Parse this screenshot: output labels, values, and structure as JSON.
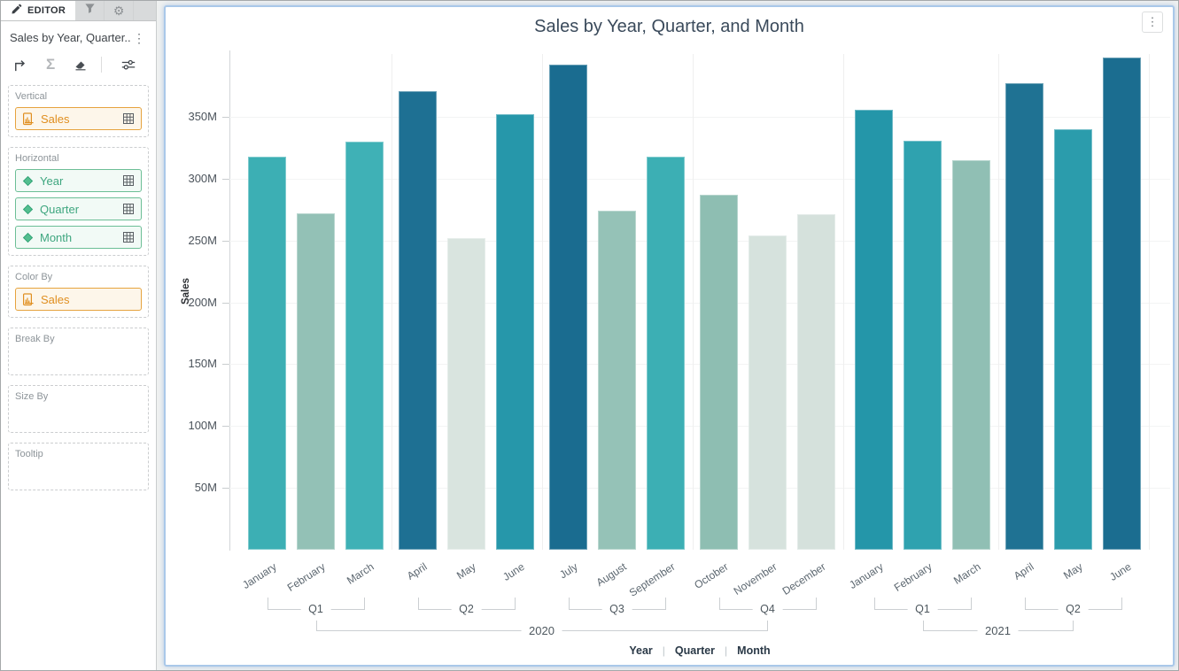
{
  "app": {
    "tabs": [
      {
        "label": "EDITOR",
        "icon": "pencil-icon",
        "active": true
      },
      {
        "label": "",
        "icon": "filter-icon",
        "active": false
      },
      {
        "label": "",
        "icon": "gear-icon",
        "active": false
      }
    ],
    "panel_title": "Sales by Year, Quarter...",
    "panel_menu_icon": "kebab-icon",
    "toolbar_icons": [
      "corner-arrow-icon",
      "sigma-icon",
      "eraser-icon",
      "sliders-icon"
    ],
    "card_menu_icon": "kebab-icon"
  },
  "editor": {
    "wells": [
      {
        "label": "Vertical",
        "chips": [
          {
            "label": "Sales",
            "type": "measure",
            "icon": "measure-icon",
            "grid_icon": true
          }
        ]
      },
      {
        "label": "Horizontal",
        "chips": [
          {
            "label": "Year",
            "type": "dimension",
            "icon": "diamond-icon",
            "grid_icon": true
          },
          {
            "label": "Quarter",
            "type": "dimension",
            "icon": "diamond-icon",
            "grid_icon": true
          },
          {
            "label": "Month",
            "type": "dimension",
            "icon": "diamond-icon",
            "grid_icon": true
          }
        ]
      },
      {
        "label": "Color By",
        "chips": [
          {
            "label": "Sales",
            "type": "measure",
            "icon": "measure-icon",
            "grid_icon": false
          }
        ]
      },
      {
        "label": "Break By",
        "chips": []
      },
      {
        "label": "Size By",
        "chips": []
      },
      {
        "label": "Tooltip",
        "chips": []
      }
    ]
  },
  "chart_data": {
    "type": "bar",
    "title": "Sales by Year, Quarter, and Month",
    "ylabel": "Sales",
    "unit": "M",
    "ylim": [
      0,
      400
    ],
    "grid": true,
    "legend": [
      "Year",
      "Quarter",
      "Month"
    ],
    "legend_position": "bottom",
    "yticks": [
      {
        "label": "50M",
        "value": 50
      },
      {
        "label": "100M",
        "value": 100
      },
      {
        "label": "150M",
        "value": 150
      },
      {
        "label": "200M",
        "value": 200
      },
      {
        "label": "250M",
        "value": 250
      },
      {
        "label": "300M",
        "value": 300
      },
      {
        "label": "350M",
        "value": 350
      }
    ],
    "years": [
      {
        "label": "2020",
        "quarters": [
          {
            "label": "Q1",
            "months": [
              {
                "name": "January",
                "value": 318,
                "color": "#3cafb4"
              },
              {
                "name": "February",
                "value": 272,
                "color": "#93c1b6"
              },
              {
                "name": "March",
                "value": 330,
                "color": "#3fb1b6"
              }
            ]
          },
          {
            "label": "Q2",
            "months": [
              {
                "name": "April",
                "value": 371,
                "color": "#1e7093"
              },
              {
                "name": "May",
                "value": 252,
                "color": "#d9e4df"
              },
              {
                "name": "June",
                "value": 352,
                "color": "#2697aa"
              }
            ]
          },
          {
            "label": "Q3",
            "months": [
              {
                "name": "July",
                "value": 392,
                "color": "#1a6c90"
              },
              {
                "name": "August",
                "value": 274,
                "color": "#95c2b7"
              },
              {
                "name": "September",
                "value": 318,
                "color": "#3cafb4"
              }
            ]
          },
          {
            "label": "Q4",
            "months": [
              {
                "name": "October",
                "value": 287,
                "color": "#8ebeb2"
              },
              {
                "name": "November",
                "value": 254,
                "color": "#d6e2dd"
              },
              {
                "name": "December",
                "value": 271,
                "color": "#d5e1dc"
              }
            ]
          }
        ]
      },
      {
        "label": "2021",
        "quarters": [
          {
            "label": "Q1",
            "months": [
              {
                "name": "January",
                "value": 356,
                "color": "#2496a9"
              },
              {
                "name": "February",
                "value": 331,
                "color": "#2fa2af"
              },
              {
                "name": "March",
                "value": 315,
                "color": "#90bfb4"
              }
            ]
          },
          {
            "label": "Q2",
            "months": [
              {
                "name": "April",
                "value": 377,
                "color": "#1f7293"
              },
              {
                "name": "May",
                "value": 340,
                "color": "#2b9cac"
              },
              {
                "name": "June",
                "value": 398,
                "color": "#1b6d90"
              }
            ]
          }
        ]
      }
    ]
  },
  "colors": {
    "accent_selection_border": "#a9c8e9",
    "measure_chip": "#e08f20",
    "dimension_chip": "#3ea67f",
    "bar_scale_low": "#d9e4df",
    "bar_scale_high": "#1a6c90",
    "title_text": "#3a4a5b",
    "axis_text": "#4b535b"
  }
}
